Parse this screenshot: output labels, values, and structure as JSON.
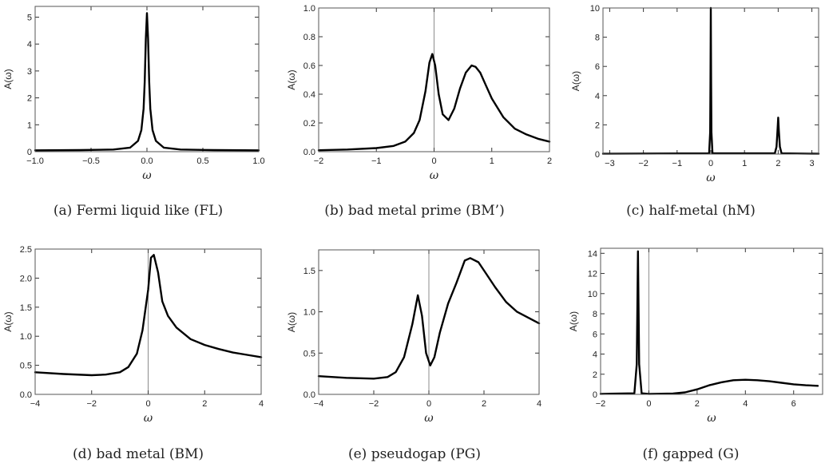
{
  "chart_data": [
    {
      "type": "line",
      "caption": "(a) Fermi liquid like (FL)",
      "xlabel": "ω",
      "ylabel": "A(ω)",
      "xlim": [
        -1,
        1
      ],
      "ylim": [
        0,
        5.4
      ],
      "xticks": [
        -1,
        -0.5,
        0,
        0.5,
        1
      ],
      "xtick_labels": [
        "−1.0",
        "−0.5",
        "0.0",
        "0.5",
        "1.0"
      ],
      "yticks": [
        0,
        1,
        2,
        3,
        4,
        5
      ],
      "ytick_labels": [
        "0",
        "1",
        "2",
        "3",
        "4",
        "5"
      ],
      "zero_line": false,
      "series": [
        {
          "x": [
            -1,
            -0.6,
            -0.3,
            -0.15,
            -0.08,
            -0.05,
            -0.03,
            -0.02,
            -0.01,
            0,
            0.01,
            0.02,
            0.03,
            0.05,
            0.08,
            0.15,
            0.3,
            0.6,
            1
          ],
          "y": [
            0.05,
            0.06,
            0.08,
            0.15,
            0.4,
            0.8,
            1.6,
            2.6,
            4.2,
            5.15,
            4.2,
            2.6,
            1.6,
            0.8,
            0.4,
            0.15,
            0.08,
            0.06,
            0.05
          ]
        }
      ]
    },
    {
      "type": "line",
      "caption": "(b) bad metal prime (BM’)",
      "xlabel": "ω",
      "ylabel": "A(ω)",
      "xlim": [
        -2,
        2
      ],
      "ylim": [
        0,
        1.0
      ],
      "xticks": [
        -2,
        -1,
        0,
        1,
        2
      ],
      "xtick_labels": [
        "−2",
        "−1",
        "0",
        "1",
        "2"
      ],
      "yticks": [
        0,
        0.2,
        0.4,
        0.6,
        0.8,
        1.0
      ],
      "ytick_labels": [
        "0.0",
        "0.2",
        "0.4",
        "0.6",
        "0.8",
        "1.0"
      ],
      "zero_line": true,
      "series": [
        {
          "x": [
            -2,
            -1.5,
            -1,
            -0.7,
            -0.5,
            -0.35,
            -0.25,
            -0.15,
            -0.08,
            -0.03,
            0.02,
            0.08,
            0.15,
            0.25,
            0.35,
            0.45,
            0.55,
            0.65,
            0.72,
            0.8,
            0.9,
            1.0,
            1.2,
            1.4,
            1.6,
            1.8,
            2
          ],
          "y": [
            0.01,
            0.015,
            0.025,
            0.04,
            0.07,
            0.13,
            0.22,
            0.42,
            0.62,
            0.68,
            0.6,
            0.4,
            0.26,
            0.22,
            0.3,
            0.44,
            0.55,
            0.6,
            0.59,
            0.55,
            0.46,
            0.37,
            0.24,
            0.16,
            0.12,
            0.09,
            0.07
          ]
        }
      ]
    },
    {
      "type": "line",
      "caption": "(c) half-metal (hM)",
      "xlabel": "ω",
      "ylabel": "A(ω)",
      "xlim": [
        -3.2,
        3.2
      ],
      "ylim": [
        0,
        10
      ],
      "xticks": [
        -3,
        -2,
        -1,
        0,
        1,
        2,
        3
      ],
      "xtick_labels": [
        "−3",
        "−2",
        "−1",
        "0",
        "1",
        "2",
        "3"
      ],
      "yticks": [
        0,
        2,
        4,
        6,
        8,
        10
      ],
      "ytick_labels": [
        "0",
        "2",
        "4",
        "6",
        "8",
        "10"
      ],
      "zero_line": false,
      "series": [
        {
          "x": [
            -3.2,
            -0.05,
            -0.02,
            -0.01,
            0,
            0.01,
            0.02,
            0.05,
            1.9,
            1.95,
            1.98,
            2.0,
            2.02,
            2.05,
            2.1,
            3.2
          ],
          "y": [
            0.02,
            0.05,
            1.5,
            5,
            10,
            5,
            1.5,
            0.05,
            0.05,
            0.5,
            1.6,
            2.5,
            1.6,
            0.5,
            0.05,
            0.02
          ]
        }
      ]
    },
    {
      "type": "line",
      "caption": "(d) bad metal (BM)",
      "xlabel": "ω",
      "ylabel": "A(ω)",
      "xlim": [
        -4,
        4
      ],
      "ylim": [
        0,
        2.5
      ],
      "xticks": [
        -4,
        -2,
        0,
        2,
        4
      ],
      "xtick_labels": [
        "−4",
        "−2",
        "0",
        "2",
        "4"
      ],
      "yticks": [
        0,
        0.5,
        1.0,
        1.5,
        2.0,
        2.5
      ],
      "ytick_labels": [
        "0.0",
        "0.5",
        "1.0",
        "1.5",
        "2.0",
        "2.5"
      ],
      "zero_line": true,
      "series": [
        {
          "x": [
            -4,
            -3,
            -2,
            -1.5,
            -1,
            -0.7,
            -0.4,
            -0.2,
            0,
            0.1,
            0.2,
            0.35,
            0.5,
            0.7,
            1,
            1.5,
            2,
            2.5,
            3,
            3.5,
            4
          ],
          "y": [
            0.38,
            0.35,
            0.33,
            0.34,
            0.38,
            0.47,
            0.7,
            1.1,
            1.8,
            2.35,
            2.4,
            2.1,
            1.6,
            1.35,
            1.15,
            0.95,
            0.85,
            0.78,
            0.72,
            0.68,
            0.64
          ]
        }
      ]
    },
    {
      "type": "line",
      "caption": "(e) pseudogap (PG)",
      "xlabel": "ω",
      "ylabel": "A(ω)",
      "xlim": [
        -4,
        4
      ],
      "ylim": [
        0,
        1.75
      ],
      "xticks": [
        -4,
        -2,
        0,
        2,
        4
      ],
      "xtick_labels": [
        "−4",
        "−2",
        "0",
        "2",
        "4"
      ],
      "yticks": [
        0,
        0.5,
        1.0,
        1.5
      ],
      "ytick_labels": [
        "0.0",
        "0.5",
        "1.0",
        "1.5"
      ],
      "zero_line": true,
      "series": [
        {
          "x": [
            -4,
            -3,
            -2,
            -1.5,
            -1.2,
            -0.9,
            -0.6,
            -0.4,
            -0.25,
            -0.1,
            0.05,
            0.2,
            0.4,
            0.7,
            1.0,
            1.3,
            1.5,
            1.8,
            2.1,
            2.4,
            2.8,
            3.2,
            3.6,
            4
          ],
          "y": [
            0.22,
            0.2,
            0.19,
            0.21,
            0.27,
            0.45,
            0.85,
            1.2,
            0.95,
            0.5,
            0.35,
            0.45,
            0.75,
            1.1,
            1.35,
            1.62,
            1.65,
            1.6,
            1.45,
            1.3,
            1.12,
            1.0,
            0.93,
            0.86
          ]
        }
      ]
    },
    {
      "type": "line",
      "caption": "(f) gapped (G)",
      "xlabel": "ω",
      "ylabel": "A(ω)",
      "xlim": [
        -2,
        7.2
      ],
      "ylim": [
        0,
        14.5
      ],
      "xticks": [
        -2,
        0,
        2,
        4,
        6
      ],
      "xtick_labels": [
        "−2",
        "0",
        "2",
        "4",
        "6"
      ],
      "yticks": [
        0,
        2,
        4,
        6,
        8,
        10,
        12,
        14
      ],
      "ytick_labels": [
        "0",
        "2",
        "4",
        "6",
        "8",
        "10",
        "12",
        "14"
      ],
      "zero_line": true,
      "series": [
        {
          "x": [
            -2,
            -0.6,
            -0.5,
            -0.45,
            -0.4,
            -0.3,
            0,
            1,
            1.5,
            2,
            2.5,
            3,
            3.5,
            4,
            4.5,
            5,
            5.5,
            6,
            6.5,
            7
          ],
          "y": [
            0.05,
            0.1,
            3,
            14.2,
            3,
            0.1,
            0.05,
            0.08,
            0.2,
            0.5,
            0.9,
            1.2,
            1.4,
            1.45,
            1.4,
            1.3,
            1.15,
            1.0,
            0.9,
            0.85
          ]
        }
      ]
    }
  ]
}
